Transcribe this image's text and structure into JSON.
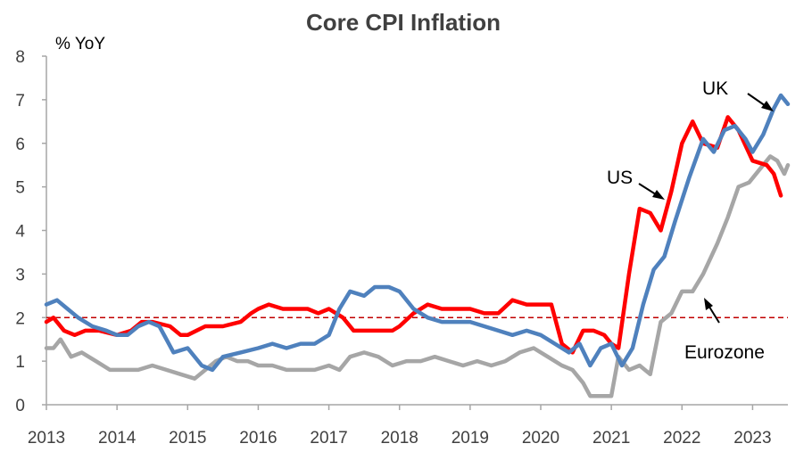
{
  "chart_data": {
    "type": "line",
    "title": "Core CPI Inflation",
    "ylabel": "% YoY",
    "xlabel": "",
    "ylim": [
      0,
      8
    ],
    "xlim": [
      2013.0,
      2023.5
    ],
    "yticks": [
      "0",
      "1",
      "2",
      "3",
      "4",
      "5",
      "6",
      "7",
      "8"
    ],
    "xticks": [
      "2013",
      "2014",
      "2015",
      "2016",
      "2017",
      "2018",
      "2019",
      "2020",
      "2021",
      "2022",
      "2023"
    ],
    "grid": false,
    "reference_line": {
      "y": 2.0,
      "style": "dashed",
      "color": "#c00000"
    },
    "series": [
      {
        "name": "US",
        "color": "#ff0000",
        "points": [
          [
            2013.0,
            1.9
          ],
          [
            2013.1,
            2.0
          ],
          [
            2013.25,
            1.7
          ],
          [
            2013.4,
            1.6
          ],
          [
            2013.55,
            1.7
          ],
          [
            2013.75,
            1.7
          ],
          [
            2014.0,
            1.6
          ],
          [
            2014.2,
            1.7
          ],
          [
            2014.35,
            1.9
          ],
          [
            2014.5,
            1.9
          ],
          [
            2014.75,
            1.8
          ],
          [
            2014.9,
            1.6
          ],
          [
            2015.0,
            1.6
          ],
          [
            2015.25,
            1.8
          ],
          [
            2015.5,
            1.8
          ],
          [
            2015.75,
            1.9
          ],
          [
            2015.9,
            2.1
          ],
          [
            2016.0,
            2.2
          ],
          [
            2016.15,
            2.3
          ],
          [
            2016.35,
            2.2
          ],
          [
            2016.5,
            2.2
          ],
          [
            2016.7,
            2.2
          ],
          [
            2016.85,
            2.1
          ],
          [
            2017.0,
            2.2
          ],
          [
            2017.2,
            2.0
          ],
          [
            2017.35,
            1.7
          ],
          [
            2017.6,
            1.7
          ],
          [
            2017.9,
            1.7
          ],
          [
            2018.0,
            1.8
          ],
          [
            2018.2,
            2.1
          ],
          [
            2018.4,
            2.3
          ],
          [
            2018.6,
            2.2
          ],
          [
            2018.8,
            2.2
          ],
          [
            2019.0,
            2.2
          ],
          [
            2019.2,
            2.1
          ],
          [
            2019.4,
            2.1
          ],
          [
            2019.6,
            2.4
          ],
          [
            2019.8,
            2.3
          ],
          [
            2020.0,
            2.3
          ],
          [
            2020.15,
            2.3
          ],
          [
            2020.3,
            1.4
          ],
          [
            2020.45,
            1.2
          ],
          [
            2020.6,
            1.7
          ],
          [
            2020.75,
            1.7
          ],
          [
            2020.9,
            1.6
          ],
          [
            2021.0,
            1.4
          ],
          [
            2021.1,
            1.3
          ],
          [
            2021.25,
            3.0
          ],
          [
            2021.4,
            4.5
          ],
          [
            2021.55,
            4.4
          ],
          [
            2021.7,
            4.0
          ],
          [
            2021.85,
            4.9
          ],
          [
            2022.0,
            6.0
          ],
          [
            2022.15,
            6.5
          ],
          [
            2022.3,
            6.0
          ],
          [
            2022.5,
            5.9
          ],
          [
            2022.65,
            6.6
          ],
          [
            2022.8,
            6.3
          ],
          [
            2023.0,
            5.6
          ],
          [
            2023.2,
            5.5
          ],
          [
            2023.3,
            5.3
          ],
          [
            2023.4,
            4.8
          ]
        ]
      },
      {
        "name": "UK",
        "color": "#4f81bd",
        "points": [
          [
            2013.0,
            2.3
          ],
          [
            2013.15,
            2.4
          ],
          [
            2013.3,
            2.2
          ],
          [
            2013.45,
            2.0
          ],
          [
            2013.65,
            1.8
          ],
          [
            2013.85,
            1.7
          ],
          [
            2014.0,
            1.6
          ],
          [
            2014.15,
            1.6
          ],
          [
            2014.3,
            1.8
          ],
          [
            2014.45,
            1.9
          ],
          [
            2014.6,
            1.8
          ],
          [
            2014.8,
            1.2
          ],
          [
            2015.0,
            1.3
          ],
          [
            2015.2,
            0.9
          ],
          [
            2015.35,
            0.8
          ],
          [
            2015.5,
            1.1
          ],
          [
            2015.75,
            1.2
          ],
          [
            2016.0,
            1.3
          ],
          [
            2016.2,
            1.4
          ],
          [
            2016.4,
            1.3
          ],
          [
            2016.6,
            1.4
          ],
          [
            2016.8,
            1.4
          ],
          [
            2017.0,
            1.6
          ],
          [
            2017.15,
            2.2
          ],
          [
            2017.3,
            2.6
          ],
          [
            2017.5,
            2.5
          ],
          [
            2017.65,
            2.7
          ],
          [
            2017.85,
            2.7
          ],
          [
            2018.0,
            2.6
          ],
          [
            2018.2,
            2.2
          ],
          [
            2018.4,
            2.0
          ],
          [
            2018.6,
            1.9
          ],
          [
            2018.8,
            1.9
          ],
          [
            2019.0,
            1.9
          ],
          [
            2019.2,
            1.8
          ],
          [
            2019.4,
            1.7
          ],
          [
            2019.6,
            1.6
          ],
          [
            2019.8,
            1.7
          ],
          [
            2020.0,
            1.6
          ],
          [
            2020.2,
            1.4
          ],
          [
            2020.4,
            1.2
          ],
          [
            2020.55,
            1.4
          ],
          [
            2020.7,
            0.9
          ],
          [
            2020.85,
            1.3
          ],
          [
            2021.0,
            1.4
          ],
          [
            2021.15,
            0.9
          ],
          [
            2021.3,
            1.3
          ],
          [
            2021.45,
            2.3
          ],
          [
            2021.6,
            3.1
          ],
          [
            2021.75,
            3.4
          ],
          [
            2021.9,
            4.2
          ],
          [
            2022.1,
            5.2
          ],
          [
            2022.3,
            6.1
          ],
          [
            2022.45,
            5.8
          ],
          [
            2022.6,
            6.3
          ],
          [
            2022.75,
            6.4
          ],
          [
            2022.9,
            6.1
          ],
          [
            2023.0,
            5.8
          ],
          [
            2023.15,
            6.2
          ],
          [
            2023.3,
            6.8
          ],
          [
            2023.4,
            7.1
          ],
          [
            2023.5,
            6.9
          ]
        ]
      },
      {
        "name": "Eurozone",
        "color": "#a6a6a6",
        "points": [
          [
            2013.0,
            1.3
          ],
          [
            2013.1,
            1.3
          ],
          [
            2013.2,
            1.5
          ],
          [
            2013.35,
            1.1
          ],
          [
            2013.5,
            1.2
          ],
          [
            2013.7,
            1.0
          ],
          [
            2013.9,
            0.8
          ],
          [
            2014.1,
            0.8
          ],
          [
            2014.3,
            0.8
          ],
          [
            2014.5,
            0.9
          ],
          [
            2014.7,
            0.8
          ],
          [
            2014.9,
            0.7
          ],
          [
            2015.1,
            0.6
          ],
          [
            2015.25,
            0.8
          ],
          [
            2015.4,
            1.0
          ],
          [
            2015.55,
            1.1
          ],
          [
            2015.7,
            1.0
          ],
          [
            2015.85,
            1.0
          ],
          [
            2016.0,
            0.9
          ],
          [
            2016.2,
            0.9
          ],
          [
            2016.4,
            0.8
          ],
          [
            2016.6,
            0.8
          ],
          [
            2016.8,
            0.8
          ],
          [
            2017.0,
            0.9
          ],
          [
            2017.15,
            0.8
          ],
          [
            2017.3,
            1.1
          ],
          [
            2017.5,
            1.2
          ],
          [
            2017.7,
            1.1
          ],
          [
            2017.9,
            0.9
          ],
          [
            2018.1,
            1.0
          ],
          [
            2018.3,
            1.0
          ],
          [
            2018.5,
            1.1
          ],
          [
            2018.7,
            1.0
          ],
          [
            2018.9,
            0.9
          ],
          [
            2019.1,
            1.0
          ],
          [
            2019.3,
            0.9
          ],
          [
            2019.5,
            1.0
          ],
          [
            2019.7,
            1.2
          ],
          [
            2019.9,
            1.3
          ],
          [
            2020.1,
            1.1
          ],
          [
            2020.3,
            0.9
          ],
          [
            2020.45,
            0.8
          ],
          [
            2020.6,
            0.5
          ],
          [
            2020.7,
            0.2
          ],
          [
            2020.85,
            0.2
          ],
          [
            2021.0,
            0.2
          ],
          [
            2021.1,
            1.1
          ],
          [
            2021.25,
            0.8
          ],
          [
            2021.4,
            0.9
          ],
          [
            2021.55,
            0.7
          ],
          [
            2021.7,
            1.9
          ],
          [
            2021.85,
            2.1
          ],
          [
            2022.0,
            2.6
          ],
          [
            2022.15,
            2.6
          ],
          [
            2022.3,
            3.0
          ],
          [
            2022.5,
            3.7
          ],
          [
            2022.65,
            4.3
          ],
          [
            2022.8,
            5.0
          ],
          [
            2022.95,
            5.1
          ],
          [
            2023.1,
            5.4
          ],
          [
            2023.25,
            5.7
          ],
          [
            2023.35,
            5.6
          ],
          [
            2023.45,
            5.3
          ],
          [
            2023.5,
            5.5
          ]
        ]
      }
    ],
    "annotations": [
      {
        "text": "UK",
        "series": "UK"
      },
      {
        "text": "US",
        "series": "US"
      },
      {
        "text": "Eurozone",
        "series": "Eurozone"
      }
    ]
  }
}
